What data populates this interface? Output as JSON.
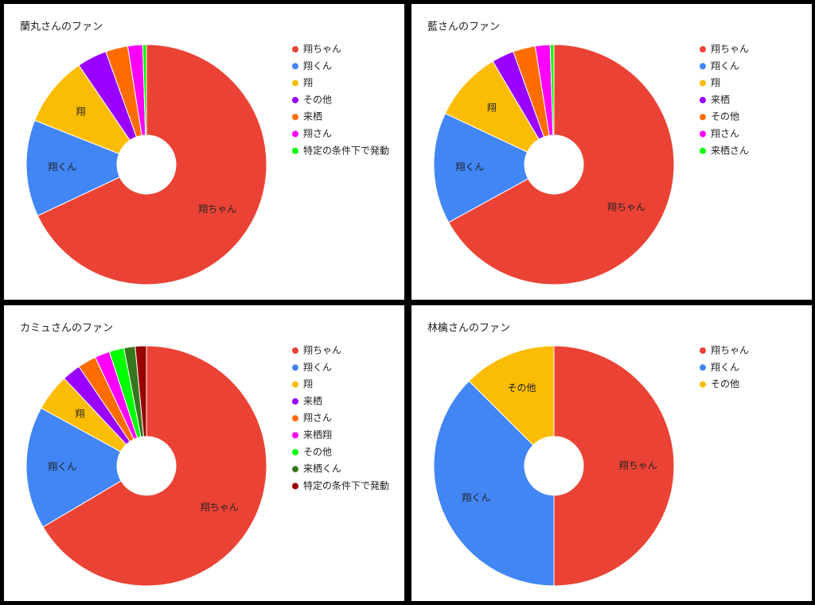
{
  "chart_data": [
    {
      "type": "donut",
      "title": "蘭丸さんのファン",
      "legend": "right",
      "categories": [
        "翔ちゃん",
        "翔くん",
        "翔",
        "その他",
        "来栖",
        "翔さん",
        "特定の条件下で発動"
      ],
      "values": [
        68,
        13,
        9.5,
        4,
        3,
        2,
        0.5
      ],
      "colors": [
        "#ea4335",
        "#4285f4",
        "#fbbc04",
        "#9900ff",
        "#ff6d01",
        "#ff00ff",
        "#00ff00"
      ]
    },
    {
      "type": "donut",
      "title": "藍さんのファン",
      "legend": "right",
      "categories": [
        "翔ちゃん",
        "翔くん",
        "翔",
        "来栖",
        "その他",
        "翔さん",
        "来栖さん"
      ],
      "values": [
        67,
        15,
        9.5,
        3,
        3,
        2,
        0.5
      ],
      "colors": [
        "#ea4335",
        "#4285f4",
        "#fbbc04",
        "#9900ff",
        "#ff6d01",
        "#ff00ff",
        "#00ff00"
      ]
    },
    {
      "type": "donut",
      "title": "カミュさんのファン",
      "legend": "right",
      "categories": [
        "翔ちゃん",
        "翔くん",
        "翔",
        "来栖",
        "翔さん",
        "来栖翔",
        "その他",
        "来栖くん",
        "特定の条件下で発動"
      ],
      "values": [
        66.5,
        16.5,
        5,
        2.5,
        2.5,
        2,
        2,
        1.5,
        1.5
      ],
      "colors": [
        "#ea4335",
        "#4285f4",
        "#fbbc04",
        "#9900ff",
        "#ff6d01",
        "#ff00ff",
        "#00ff00",
        "#38761d",
        "#990000"
      ]
    },
    {
      "type": "donut",
      "title": "林檎さんのファン",
      "legend": "right",
      "categories": [
        "翔ちゃん",
        "翔くん",
        "その他"
      ],
      "values": [
        50,
        37.5,
        12.5
      ],
      "colors": [
        "#ea4335",
        "#4285f4",
        "#fbbc04"
      ]
    }
  ]
}
